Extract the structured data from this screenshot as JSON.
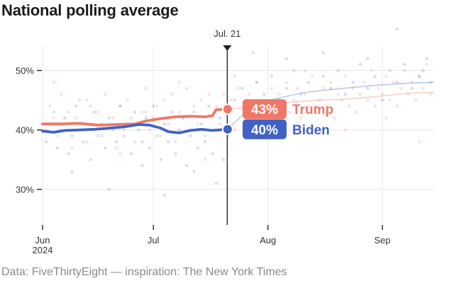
{
  "chart_data": {
    "type": "scatter",
    "title": "National polling average",
    "source": "Data: FiveThirtyEight — inspiration: The New York Times",
    "x_range_days": [
      0,
      106
    ],
    "ylim": [
      24,
      54
    ],
    "y_ticks": [
      {
        "value": 30,
        "label": "30%"
      },
      {
        "value": 40,
        "label": "40%"
      },
      {
        "value": 50,
        "label": "50%"
      }
    ],
    "x_ticks": [
      {
        "day": 0,
        "label": "Jun",
        "sublabel": "2024"
      },
      {
        "day": 30,
        "label": "Jul",
        "sublabel": ""
      },
      {
        "day": 61,
        "label": "Aug",
        "sublabel": ""
      },
      {
        "day": 92,
        "label": "Sep",
        "sublabel": ""
      }
    ],
    "marker": {
      "day": 50,
      "label": "Jul. 21"
    },
    "colors": {
      "trump": "#f07766",
      "biden": "#4062c4",
      "grid": "#e6e6e6",
      "axis": "#222222"
    },
    "series": [
      {
        "name": "Trump",
        "color": "#f07766",
        "current_value": "43%",
        "current_label": "Trump",
        "average": [
          [
            0,
            41.0
          ],
          [
            5,
            41.0
          ],
          [
            10,
            41.1
          ],
          [
            15,
            40.8
          ],
          [
            20,
            40.9
          ],
          [
            25,
            41.0
          ],
          [
            28,
            41.5
          ],
          [
            32,
            41.9
          ],
          [
            36,
            42.2
          ],
          [
            40,
            42.3
          ],
          [
            44,
            42.2
          ],
          [
            46,
            42.4
          ],
          [
            47,
            43.4
          ],
          [
            50,
            43.5
          ]
        ],
        "average_after": [
          [
            50,
            43.5
          ],
          [
            55,
            43.7
          ],
          [
            60,
            44.2
          ],
          [
            65,
            44.6
          ],
          [
            70,
            44.8
          ],
          [
            75,
            45.0
          ],
          [
            80,
            45.1
          ],
          [
            85,
            45.3
          ],
          [
            90,
            45.6
          ],
          [
            95,
            45.9
          ],
          [
            100,
            46.2
          ],
          [
            106,
            46.3
          ]
        ],
        "polls": [
          [
            1,
            40
          ],
          [
            2,
            44
          ],
          [
            3,
            42
          ],
          [
            4,
            39
          ],
          [
            5,
            46
          ],
          [
            6,
            41
          ],
          [
            7,
            43
          ],
          [
            8,
            37
          ],
          [
            9,
            42
          ],
          [
            10,
            45
          ],
          [
            11,
            40
          ],
          [
            12,
            38
          ],
          [
            13,
            44
          ],
          [
            14,
            41
          ],
          [
            15,
            43
          ],
          [
            16,
            39
          ],
          [
            17,
            46
          ],
          [
            18,
            41
          ],
          [
            19,
            42
          ],
          [
            20,
            37
          ],
          [
            21,
            44
          ],
          [
            22,
            40
          ],
          [
            23,
            45
          ],
          [
            24,
            42
          ],
          [
            25,
            38
          ],
          [
            26,
            41
          ],
          [
            27,
            43
          ],
          [
            28,
            47
          ],
          [
            29,
            40
          ],
          [
            30,
            42
          ],
          [
            31,
            44
          ],
          [
            32,
            39
          ],
          [
            33,
            45
          ],
          [
            34,
            41
          ],
          [
            35,
            46
          ],
          [
            36,
            38
          ],
          [
            37,
            43
          ],
          [
            38,
            42
          ],
          [
            39,
            47
          ],
          [
            40,
            40
          ],
          [
            41,
            44
          ],
          [
            42,
            41
          ],
          [
            43,
            45
          ],
          [
            44,
            39
          ],
          [
            45,
            46
          ],
          [
            46,
            42
          ],
          [
            47,
            44
          ],
          [
            48,
            41
          ],
          [
            49,
            46
          ],
          [
            50,
            43
          ],
          [
            51,
            45
          ],
          [
            52,
            40
          ],
          [
            53,
            47
          ],
          [
            54,
            44
          ],
          [
            55,
            42
          ],
          [
            56,
            46
          ],
          [
            57,
            43
          ],
          [
            58,
            48
          ],
          [
            59,
            41
          ],
          [
            60,
            45
          ],
          [
            61,
            44
          ],
          [
            62,
            47
          ],
          [
            63,
            42
          ],
          [
            64,
            46
          ],
          [
            65,
            44
          ],
          [
            66,
            48
          ],
          [
            67,
            43
          ],
          [
            68,
            45
          ],
          [
            69,
            47
          ],
          [
            70,
            42
          ],
          [
            71,
            46
          ],
          [
            72,
            44
          ],
          [
            73,
            49
          ],
          [
            74,
            43
          ],
          [
            75,
            45
          ],
          [
            76,
            47
          ],
          [
            77,
            44
          ],
          [
            78,
            48
          ],
          [
            79,
            42
          ],
          [
            80,
            46
          ],
          [
            81,
            45
          ],
          [
            82,
            49
          ],
          [
            83,
            44
          ],
          [
            84,
            47
          ],
          [
            85,
            43
          ],
          [
            86,
            46
          ],
          [
            87,
            48
          ],
          [
            88,
            45
          ],
          [
            89,
            50
          ],
          [
            90,
            44
          ],
          [
            91,
            47
          ],
          [
            92,
            46
          ],
          [
            93,
            49
          ],
          [
            94,
            45
          ],
          [
            95,
            48
          ],
          [
            96,
            44
          ],
          [
            97,
            47
          ],
          [
            98,
            50
          ],
          [
            99,
            46
          ],
          [
            100,
            48
          ],
          [
            101,
            45
          ],
          [
            102,
            49
          ],
          [
            103,
            47
          ],
          [
            104,
            51
          ],
          [
            105,
            46
          ],
          [
            3,
            48
          ],
          [
            12,
            45
          ],
          [
            21,
            36
          ],
          [
            28,
            43
          ],
          [
            37,
            48
          ],
          [
            44,
            35
          ],
          [
            52,
            49
          ],
          [
            63,
            39
          ],
          [
            71,
            50
          ],
          [
            82,
            40
          ],
          [
            93,
            42
          ],
          [
            102,
            38
          ]
        ]
      },
      {
        "name": "Biden",
        "color": "#4062c4",
        "current_value": "40%",
        "current_label": "Biden",
        "average": [
          [
            0,
            39.8
          ],
          [
            3,
            39.6
          ],
          [
            6,
            39.9
          ],
          [
            10,
            40.0
          ],
          [
            14,
            40.1
          ],
          [
            18,
            40.3
          ],
          [
            22,
            40.5
          ],
          [
            26,
            40.9
          ],
          [
            29,
            40.8
          ],
          [
            32,
            40.3
          ],
          [
            34,
            39.7
          ],
          [
            37,
            39.5
          ],
          [
            40,
            39.9
          ],
          [
            43,
            40.1
          ],
          [
            46,
            39.9
          ],
          [
            50,
            40.1
          ]
        ],
        "average_after": [
          [
            50,
            40.1
          ],
          [
            55,
            43.0
          ],
          [
            60,
            44.8
          ],
          [
            65,
            45.5
          ],
          [
            70,
            46.2
          ],
          [
            75,
            46.6
          ],
          [
            80,
            46.9
          ],
          [
            85,
            47.2
          ],
          [
            90,
            47.5
          ],
          [
            95,
            47.7
          ],
          [
            100,
            47.9
          ],
          [
            106,
            48.0
          ]
        ],
        "polls": [
          [
            1,
            38
          ],
          [
            2,
            41
          ],
          [
            3,
            43
          ],
          [
            4,
            37
          ],
          [
            5,
            40
          ],
          [
            6,
            42
          ],
          [
            7,
            36
          ],
          [
            8,
            39
          ],
          [
            9,
            44
          ],
          [
            10,
            41
          ],
          [
            11,
            38
          ],
          [
            12,
            40
          ],
          [
            13,
            35
          ],
          [
            14,
            43
          ],
          [
            15,
            39
          ],
          [
            16,
            41
          ],
          [
            17,
            37
          ],
          [
            18,
            42
          ],
          [
            19,
            40
          ],
          [
            20,
            38
          ],
          [
            21,
            44
          ],
          [
            22,
            39
          ],
          [
            23,
            41
          ],
          [
            24,
            36
          ],
          [
            25,
            43
          ],
          [
            26,
            40
          ],
          [
            27,
            38
          ],
          [
            28,
            42
          ],
          [
            29,
            37
          ],
          [
            30,
            44
          ],
          [
            31,
            39
          ],
          [
            32,
            35
          ],
          [
            33,
            41
          ],
          [
            34,
            38
          ],
          [
            35,
            43
          ],
          [
            36,
            36
          ],
          [
            37,
            40
          ],
          [
            38,
            42
          ],
          [
            39,
            34
          ],
          [
            40,
            39
          ],
          [
            41,
            43
          ],
          [
            42,
            37
          ],
          [
            43,
            41
          ],
          [
            44,
            38
          ],
          [
            45,
            44
          ],
          [
            46,
            36
          ],
          [
            47,
            40
          ],
          [
            48,
            42
          ],
          [
            49,
            35
          ],
          [
            50,
            39
          ],
          [
            52,
            45
          ],
          [
            54,
            47
          ],
          [
            56,
            44
          ],
          [
            58,
            48
          ],
          [
            60,
            46
          ],
          [
            62,
            49
          ],
          [
            64,
            45
          ],
          [
            66,
            47
          ],
          [
            68,
            50
          ],
          [
            70,
            46
          ],
          [
            72,
            48
          ],
          [
            74,
            44
          ],
          [
            76,
            49
          ],
          [
            78,
            47
          ],
          [
            80,
            50
          ],
          [
            82,
            46
          ],
          [
            84,
            48
          ],
          [
            86,
            51
          ],
          [
            88,
            47
          ],
          [
            90,
            49
          ],
          [
            92,
            45
          ],
          [
            94,
            50
          ],
          [
            96,
            48
          ],
          [
            98,
            51
          ],
          [
            100,
            47
          ],
          [
            102,
            49
          ],
          [
            104,
            52
          ],
          [
            105,
            48
          ],
          [
            8,
            33
          ],
          [
            18,
            30
          ],
          [
            27,
            34
          ],
          [
            33,
            29
          ],
          [
            41,
            33
          ],
          [
            47,
            31
          ],
          [
            57,
            53
          ],
          [
            66,
            52
          ],
          [
            76,
            53
          ],
          [
            88,
            52
          ],
          [
            96,
            57
          ],
          [
            103,
            50
          ]
        ]
      }
    ]
  }
}
